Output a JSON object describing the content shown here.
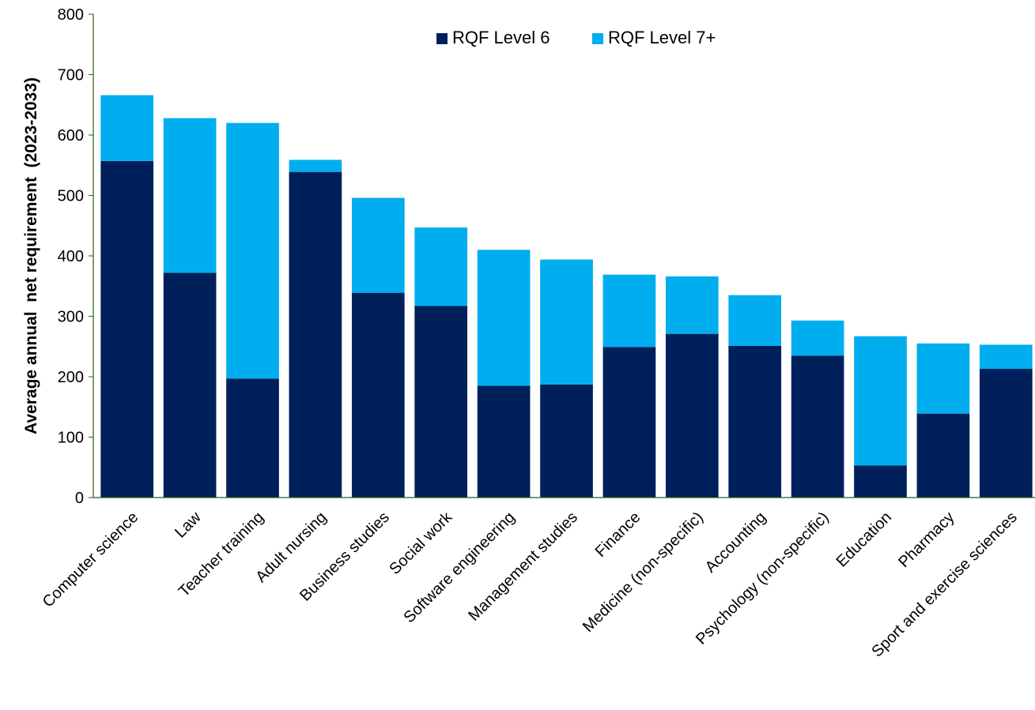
{
  "chart_data": {
    "type": "bar",
    "stacked": true,
    "ylabel": "Average annual  net requirement  (2023-2033)",
    "xlabel": "",
    "ylim": [
      0,
      800
    ],
    "yticks": [
      0,
      100,
      200,
      300,
      400,
      500,
      600,
      700,
      800
    ],
    "grid": false,
    "legend_position": "top-right",
    "categories": [
      "Computer science",
      "Law",
      "Teacher training",
      "Adult nursing",
      "Business studies",
      "Social work",
      "Software engineering",
      "Management studies",
      "Finance",
      "Medicine (non-specific)",
      "Accounting",
      "Psychology (non-specific)",
      "Education",
      "Pharmacy",
      "Sport and exercise sciences"
    ],
    "series": [
      {
        "name": "RQF Level 6",
        "color": "#00205B",
        "values": [
          557,
          372,
          197,
          539,
          339,
          317,
          185,
          187,
          249,
          271,
          251,
          235,
          53,
          139,
          213
        ]
      },
      {
        "name": "RQF Level 7+",
        "color": "#00AEEF",
        "values": [
          109,
          256,
          423,
          20,
          157,
          130,
          225,
          207,
          120,
          95,
          84,
          58,
          214,
          116,
          40
        ]
      }
    ]
  }
}
